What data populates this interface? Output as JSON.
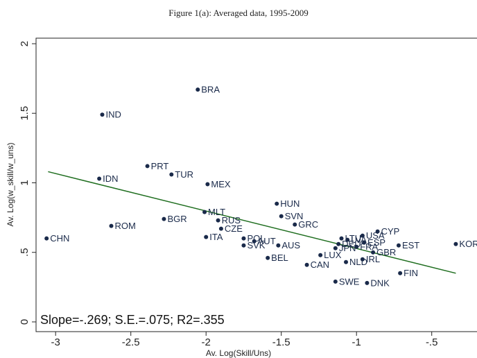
{
  "chart_data": {
    "type": "scatter",
    "title": "Figure 1(a): Averaged data, 1995-2009",
    "x_label": "Av. Log(Skill/Uns)",
    "y_label": "Av. Log(w_skill/w_uns)",
    "annotation": "Slope=-.269; S.E.=.075; R2=.355",
    "color": "#1a2a4a",
    "labels": [
      "CHN",
      "IND",
      "BRA",
      "PRT",
      "TUR",
      "IDN",
      "MEX",
      "ROM",
      "BGR",
      "MLT",
      "RUS",
      "CZE",
      "ITA",
      "POL",
      "AUT",
      "SVK",
      "AUS",
      "HUN",
      "SVN",
      "GRC",
      "BEL",
      "CAN",
      "LUX",
      "SWE",
      "DNK",
      "FIN",
      "EST",
      "KOR",
      "CYP",
      "USA",
      "ESP",
      "LTU",
      "LVA",
      "NLD",
      "IRL",
      "GBR",
      "FRA",
      "JPN",
      "DEU"
    ],
    "x": [
      -3.06,
      -2.69,
      -2.055,
      -2.39,
      -2.23,
      -2.71,
      -1.99,
      -2.63,
      -2.28,
      -2.01,
      -1.92,
      -1.9,
      -2.0,
      -1.75,
      -1.68,
      -1.75,
      -1.52,
      -1.53,
      -1.5,
      -1.41,
      -1.59,
      -1.33,
      -1.24,
      -1.14,
      -0.93,
      -0.71,
      -0.72,
      -0.34,
      -0.86,
      -0.96,
      -0.95,
      -1.1,
      -1.06,
      -1.07,
      -0.96,
      -0.89,
      -1.0,
      -1.14,
      -1.12
    ],
    "values": [
      0.6,
      1.49,
      1.67,
      1.12,
      1.06,
      1.03,
      0.99,
      0.69,
      0.74,
      0.79,
      0.73,
      0.67,
      0.61,
      0.6,
      0.58,
      0.55,
      0.55,
      0.85,
      0.76,
      0.7,
      0.46,
      0.41,
      0.48,
      0.29,
      0.28,
      0.35,
      0.55,
      0.56,
      0.65,
      0.62,
      0.57,
      0.6,
      0.59,
      0.43,
      0.45,
      0.5,
      0.54,
      0.53,
      0.56
    ],
    "fit_line": {
      "x": [
        -3.05,
        -0.34
      ],
      "y": [
        1.08,
        0.35
      ],
      "color": "#1f6e1f"
    },
    "xlim": [
      -3.13,
      -0.2
    ],
    "ylim": [
      -0.07,
      2.04
    ],
    "xticks": [
      -3,
      -2.5,
      -2,
      -1.5,
      -1,
      {
        "value": -0.5,
        "label": "-.5"
      }
    ],
    "yticks": [
      0,
      {
        "value": 0.5,
        "label": ".5"
      },
      1,
      1.5,
      2
    ]
  }
}
